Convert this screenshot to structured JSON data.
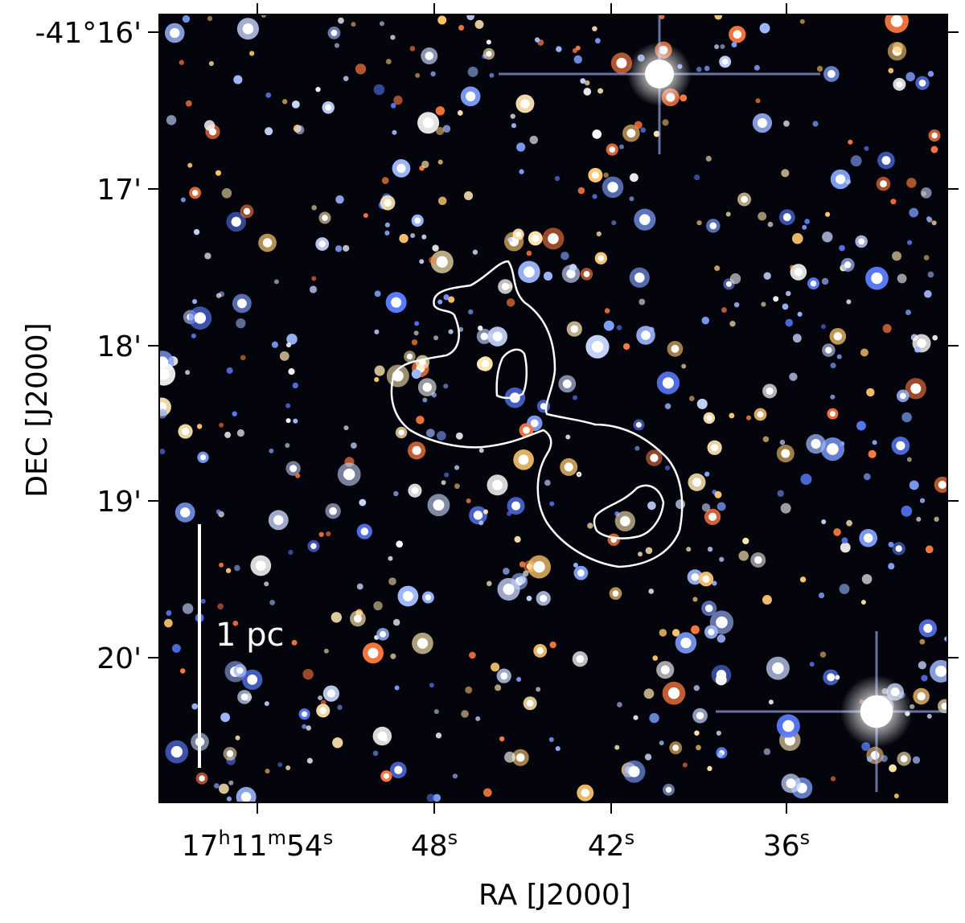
{
  "axes": {
    "x_label": "RA [J2000]",
    "y_label": "DEC [J2000]",
    "x_ticks": [
      "17h11m54s",
      "48s",
      "42s",
      "36s"
    ],
    "y_ticks": [
      "-41°16'",
      "17'",
      "18'",
      "19'",
      "20'"
    ]
  },
  "scale_bar": {
    "label": "1 pc"
  }
}
